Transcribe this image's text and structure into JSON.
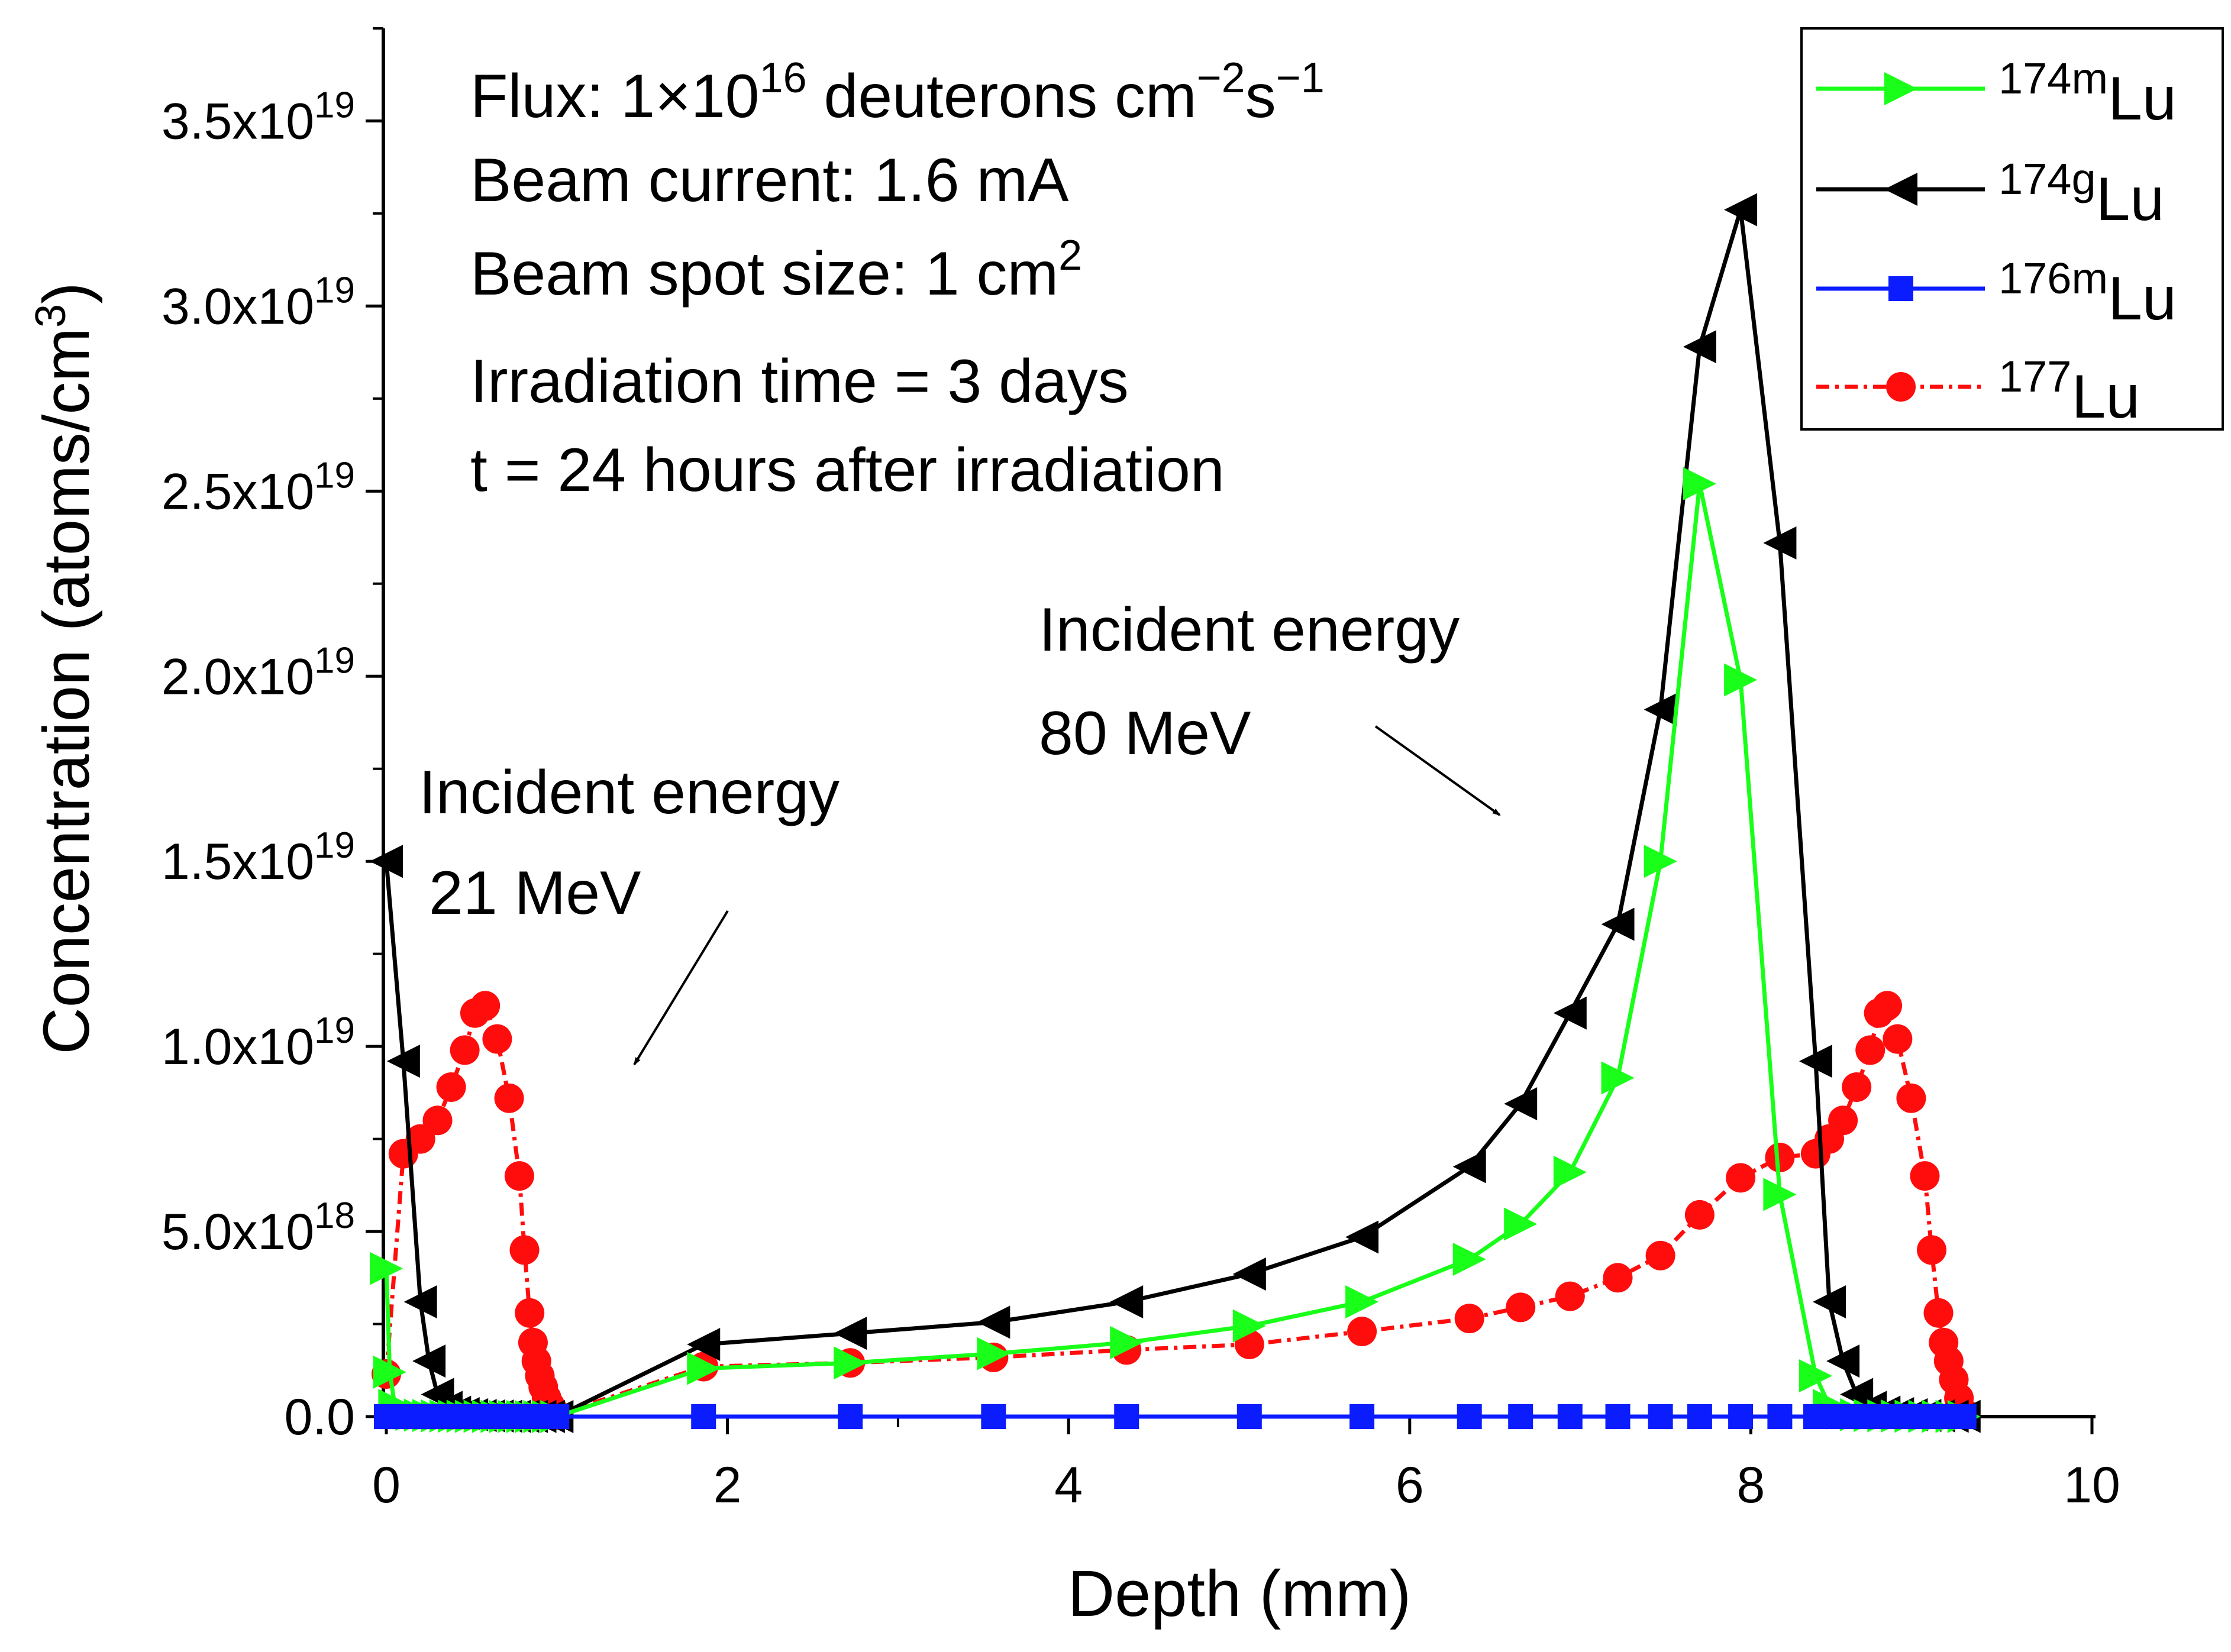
{
  "chart_data": {
    "type": "line",
    "xlabel": "Depth (mm)",
    "ylabel": "Concentration (atoms/cm",
    "ylabel_sup": "3",
    "ylabel_close": ")",
    "xlim": [
      0,
      10
    ],
    "ylim": [
      0,
      3.75e+19
    ],
    "x_ticks": [
      {
        "value": 0,
        "label": "0"
      },
      {
        "value": 2,
        "label": "2"
      },
      {
        "value": 4,
        "label": "4"
      },
      {
        "value": 6,
        "label": "6"
      },
      {
        "value": 8,
        "label": "8"
      },
      {
        "value": 10,
        "label": "10"
      }
    ],
    "y_ticks": [
      {
        "value": 0,
        "mant": "0.0",
        "exp": ""
      },
      {
        "value": 5e+18,
        "mant": "5.0x10",
        "exp": "18"
      },
      {
        "value": 1e+19,
        "mant": "1.0x10",
        "exp": "19"
      },
      {
        "value": 1.5e+19,
        "mant": "1.5x10",
        "exp": "19"
      },
      {
        "value": 2e+19,
        "mant": "2.0x10",
        "exp": "19"
      },
      {
        "value": 2.5e+19,
        "mant": "2.5x10",
        "exp": "19"
      },
      {
        "value": 3e+19,
        "mant": "3.0x10",
        "exp": "19"
      },
      {
        "value": 3.5e+19,
        "mant": "3.5x10",
        "exp": "19"
      }
    ],
    "series": [
      {
        "id": "lu174m",
        "mass": "174m",
        "element": "Lu",
        "color": "#19ff19",
        "marker": "triangle-right",
        "dash": "",
        "x": [
          0.0,
          0.02,
          0.05,
          0.1,
          0.15,
          0.2,
          0.25,
          0.3,
          0.35,
          0.4,
          0.45,
          0.5,
          0.55,
          0.6,
          0.65,
          0.7,
          0.75,
          0.8,
          0.85,
          0.9,
          0.95,
          1.0,
          1.86,
          2.72,
          3.56,
          4.34,
          5.06,
          5.72,
          6.35,
          6.65,
          6.94,
          7.22,
          7.47,
          7.7,
          7.94,
          8.17,
          8.38,
          8.46,
          8.54,
          8.62,
          8.7,
          8.78,
          8.86,
          8.94,
          9.02,
          9.1,
          9.18,
          9.25
        ],
        "values": [
          4e+18,
          1.2e+18,
          3e+17,
          1e+17,
          6e+16,
          4e+16,
          3e+16,
          2e+16,
          1.5e+16,
          1e+16,
          8000000000000000.0,
          6000000000000000.0,
          5000000000000000.0,
          4000000000000000.0,
          3000000000000000.0,
          2000000000000000.0,
          2000000000000000.0,
          1000000000000000.0,
          1000000000000000.0,
          500000000000000.0,
          300000000000000.0,
          100000000000000.0,
          1.3e+18,
          1.45e+18,
          1.7e+18,
          2e+18,
          2.45e+18,
          3.1e+18,
          4.25e+18,
          5.2e+18,
          6.6e+18,
          9.15e+18,
          1.5e+19,
          2.52e+19,
          1.99e+19,
          6e+18,
          1.1e+18,
          3e+17,
          1e+17,
          5e+16,
          3e+16,
          2e+16,
          1.5e+16,
          1e+16,
          8000000000000000.0,
          5000000000000000.0,
          3000000000000000.0,
          1000000000000000.0
        ]
      },
      {
        "id": "lu174g",
        "mass": "174g",
        "element": "Lu",
        "color": "#000000",
        "marker": "triangle-left",
        "dash": "",
        "x": [
          0.0,
          0.1,
          0.2,
          0.25,
          0.3,
          0.35,
          0.4,
          0.45,
          0.5,
          0.55,
          0.6,
          0.65,
          0.7,
          0.75,
          0.8,
          0.85,
          0.9,
          0.95,
          1.0,
          1.86,
          2.72,
          3.56,
          4.34,
          5.06,
          5.72,
          6.35,
          6.65,
          6.94,
          7.22,
          7.47,
          7.7,
          7.94,
          8.17,
          8.38,
          8.46,
          8.54,
          8.62,
          8.7,
          8.78,
          8.86,
          8.94,
          9.02,
          9.1,
          9.18,
          9.25
        ],
        "values": [
          1.5e+19,
          9.6e+18,
          3.1e+18,
          1.5e+18,
          6e+17,
          2.5e+17,
          1.2e+17,
          8e+16,
          5e+16,
          3e+16,
          2e+16,
          1.5e+16,
          1e+16,
          8000000000000000.0,
          6000000000000000.0,
          4000000000000000.0,
          3000000000000000.0,
          2000000000000000.0,
          1000000000000000.0,
          1.95e+18,
          2.25e+18,
          2.55e+18,
          3.1e+18,
          3.85e+18,
          4.85e+18,
          6.75e+18,
          8.45e+18,
          1.09e+19,
          1.33e+19,
          1.91e+19,
          2.89e+19,
          3.26e+19,
          2.36e+19,
          9.6e+18,
          3.1e+18,
          1.5e+18,
          6e+17,
          2.5e+17,
          1.2e+17,
          8e+16,
          5e+16,
          3e+16,
          2e+16,
          1e+16,
          5000000000000000.0
        ]
      },
      {
        "id": "lu176m",
        "mass": "176m",
        "element": "Lu",
        "color": "#0b1cff",
        "marker": "square",
        "dash": "",
        "x": [
          0.0,
          0.05,
          0.1,
          0.15,
          0.2,
          0.25,
          0.3,
          0.35,
          0.4,
          0.45,
          0.5,
          0.55,
          0.6,
          0.65,
          0.7,
          0.75,
          0.8,
          0.85,
          0.9,
          0.95,
          1.0,
          1.86,
          2.72,
          3.56,
          4.34,
          5.06,
          5.72,
          6.35,
          6.65,
          6.94,
          7.22,
          7.47,
          7.7,
          7.94,
          8.17,
          8.38,
          8.46,
          8.54,
          8.62,
          8.7,
          8.78,
          8.86,
          8.94,
          9.02,
          9.1,
          9.18,
          9.25
        ],
        "values": [
          0,
          0,
          0,
          0,
          0,
          0,
          0,
          0,
          0,
          0,
          0,
          0,
          0,
          0,
          0,
          0,
          0,
          0,
          0,
          0,
          0,
          0,
          0,
          0,
          0,
          0,
          0,
          0,
          0,
          0,
          0,
          0,
          0,
          0,
          0,
          0,
          0,
          0,
          0,
          0,
          0,
          0,
          0,
          0,
          0,
          0,
          0
        ]
      },
      {
        "id": "lu177",
        "mass": "177",
        "element": "Lu",
        "color": "#ff0d0d",
        "marker": "circle",
        "dash": "22,10,6,10",
        "x": [
          0.0,
          0.1,
          0.2,
          0.3,
          0.38,
          0.46,
          0.52,
          0.58,
          0.65,
          0.72,
          0.78,
          0.81,
          0.84,
          0.86,
          0.88,
          0.9,
          0.92,
          0.94,
          0.96,
          0.98,
          1.0,
          1.86,
          2.72,
          3.56,
          4.34,
          5.06,
          5.72,
          6.35,
          6.65,
          6.94,
          7.22,
          7.47,
          7.7,
          7.94,
          8.17,
          8.38,
          8.46,
          8.54,
          8.62,
          8.7,
          8.75,
          8.8,
          8.86,
          8.94,
          9.02,
          9.06,
          9.1,
          9.13,
          9.16,
          9.19,
          9.22,
          9.25
        ],
        "values": [
          1.15e+18,
          7.1e+18,
          7.5e+18,
          8e+18,
          8.9e+18,
          9.9e+18,
          1.09e+19,
          1.11e+19,
          1.02e+19,
          8.6e+18,
          6.5e+18,
          4.5e+18,
          2.8e+18,
          2e+18,
          1.5e+18,
          1.1e+18,
          8e+17,
          5e+17,
          3e+17,
          1.5e+17,
          5e+16,
          1.35e+18,
          1.45e+18,
          1.6e+18,
          1.8e+18,
          1.95e+18,
          2.3e+18,
          2.65e+18,
          2.95e+18,
          3.25e+18,
          3.75e+18,
          4.35e+18,
          5.45e+18,
          6.45e+18,
          7e+18,
          7.1e+18,
          7.5e+18,
          8e+18,
          8.9e+18,
          9.9e+18,
          1.09e+19,
          1.11e+19,
          1.02e+19,
          8.6e+18,
          6.5e+18,
          4.5e+18,
          2.8e+18,
          2e+18,
          1.5e+18,
          1e+18,
          5e+17,
          1e+17
        ]
      }
    ],
    "annotations": {
      "flux_pre": "Flux: 1",
      "flux_times": "×",
      "flux_ten": "10",
      "flux_exp": "16",
      "flux_units": " deuterons cm",
      "flux_cm_exp": "−2",
      "flux_s": "s",
      "flux_s_exp": "−1",
      "beam_current": "Beam current: 1.6 mA",
      "spot_size": "Beam spot size: 1 cm",
      "spot_size_exp": "2",
      "irradiation_time": "Irradiation time = 3 days",
      "decay_time": "t = 24 hours after irradiation",
      "incident_21_line1": "Incident energy",
      "incident_21_line2": "21 MeV",
      "incident_80_line1": "Incident energy",
      "incident_80_line2": "80 MeV"
    }
  }
}
